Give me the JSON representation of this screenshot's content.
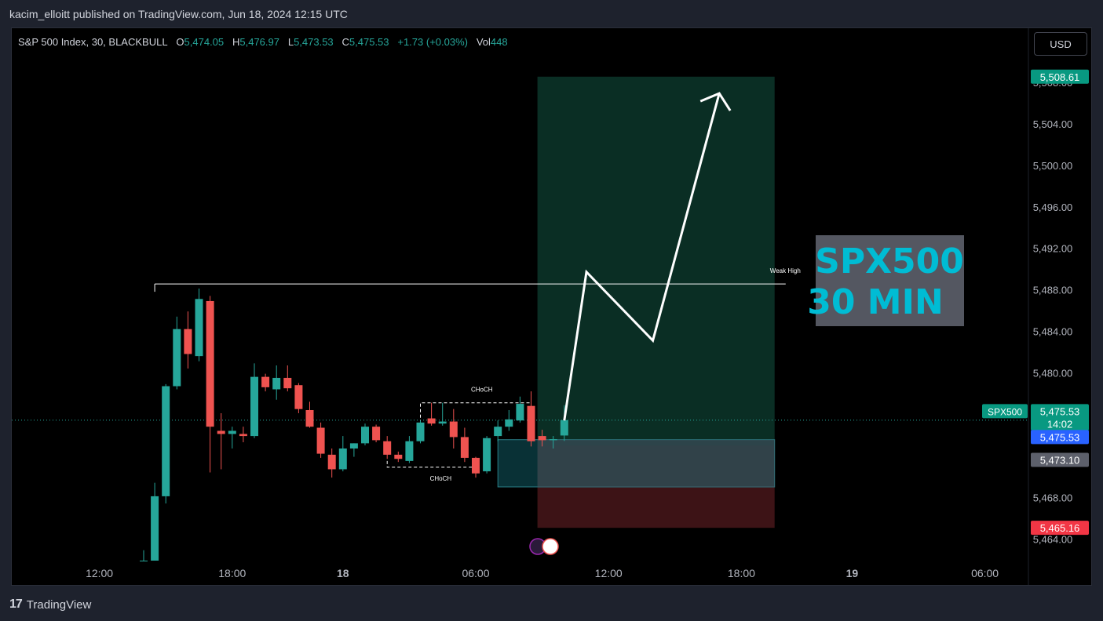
{
  "header": {
    "publisher": "kacim_elloitt published on TradingView.com, Jun 18, 2024 12:15 UTC"
  },
  "legend": {
    "symbol": "S&P 500 Index, 30, BLACKBULL",
    "o_label": "O",
    "o": "5,474.05",
    "h_label": "H",
    "h": "5,476.97",
    "l_label": "L",
    "l": "5,473.53",
    "c_label": "C",
    "c": "5,475.53",
    "change": "+1.73 (+0.03%)",
    "vol_label": "Vol",
    "vol": "448"
  },
  "currency_button": "USD",
  "footer": {
    "brand": "TradingView",
    "logo": "17"
  },
  "colors": {
    "up": "#26a69a",
    "down": "#ef5350",
    "target_zone": "#0a2e24",
    "stop_zone": "#3d1316",
    "box_zone": "#0a3a40",
    "label_cyan": "#00bcd4"
  },
  "chart_data": {
    "type": "candlestick",
    "y_range": [
      5462.0,
      5509.5
    ],
    "y_ticks": [
      "5,464.00",
      "5,468.00",
      "5,472.00",
      "5,476.00",
      "5,480.00",
      "5,484.00",
      "5,488.00",
      "5,492.00",
      "5,496.00",
      "5,500.00",
      "5,504.00",
      "5,508.00"
    ],
    "x_ticks": [
      {
        "bar": -4,
        "label": "12:00",
        "bold": false
      },
      {
        "bar": 8,
        "label": "18:00",
        "bold": false
      },
      {
        "bar": 18,
        "label": "18",
        "bold": true
      },
      {
        "bar": 30,
        "label": "06:00",
        "bold": false
      },
      {
        "bar": 42,
        "label": "12:00",
        "bold": false
      },
      {
        "bar": 54,
        "label": "18:00",
        "bold": false
      },
      {
        "bar": 64,
        "label": "19",
        "bold": true
      },
      {
        "bar": 76,
        "label": "06:00",
        "bold": false
      }
    ],
    "candles": [
      {
        "o": 5462.0,
        "h": 5463.0,
        "l": 5462.0,
        "c": 5462.0
      },
      {
        "o": 5462.0,
        "h": 5469.5,
        "l": 5462.0,
        "c": 5468.2
      },
      {
        "o": 5468.2,
        "h": 5479.0,
        "l": 5467.5,
        "c": 5478.8
      },
      {
        "o": 5478.8,
        "h": 5485.5,
        "l": 5478.5,
        "c": 5484.3
      },
      {
        "o": 5484.3,
        "h": 5486.0,
        "l": 5480.5,
        "c": 5481.9
      },
      {
        "o": 5481.7,
        "h": 5488.2,
        "l": 5481.2,
        "c": 5487.2
      },
      {
        "o": 5487.0,
        "h": 5487.5,
        "l": 5470.5,
        "c": 5474.9
      },
      {
        "o": 5474.5,
        "h": 5476.2,
        "l": 5470.8,
        "c": 5474.2
      },
      {
        "o": 5474.2,
        "h": 5474.9,
        "l": 5472.8,
        "c": 5474.5
      },
      {
        "o": 5474.2,
        "h": 5474.9,
        "l": 5473.4,
        "c": 5474.0
      },
      {
        "o": 5474.0,
        "h": 5481.0,
        "l": 5473.8,
        "c": 5479.7
      },
      {
        "o": 5479.7,
        "h": 5480.0,
        "l": 5478.3,
        "c": 5478.7
      },
      {
        "o": 5478.5,
        "h": 5480.8,
        "l": 5477.5,
        "c": 5479.6
      },
      {
        "o": 5479.6,
        "h": 5480.8,
        "l": 5478.3,
        "c": 5478.6
      },
      {
        "o": 5478.9,
        "h": 5479.1,
        "l": 5476.2,
        "c": 5476.6
      },
      {
        "o": 5476.5,
        "h": 5477.3,
        "l": 5474.8,
        "c": 5474.9
      },
      {
        "o": 5474.8,
        "h": 5475.3,
        "l": 5471.9,
        "c": 5472.3
      },
      {
        "o": 5472.2,
        "h": 5472.8,
        "l": 5470.0,
        "c": 5470.8
      },
      {
        "o": 5470.8,
        "h": 5474.0,
        "l": 5470.6,
        "c": 5472.8
      },
      {
        "o": 5472.8,
        "h": 5473.3,
        "l": 5472.0,
        "c": 5473.3
      },
      {
        "o": 5473.3,
        "h": 5475.2,
        "l": 5473.1,
        "c": 5474.9
      },
      {
        "o": 5474.9,
        "h": 5475.1,
        "l": 5473.4,
        "c": 5473.6
      },
      {
        "o": 5473.5,
        "h": 5474.0,
        "l": 5471.8,
        "c": 5472.2
      },
      {
        "o": 5472.2,
        "h": 5472.5,
        "l": 5471.5,
        "c": 5471.8
      },
      {
        "o": 5471.6,
        "h": 5474.0,
        "l": 5471.4,
        "c": 5473.5
      },
      {
        "o": 5473.5,
        "h": 5475.5,
        "l": 5473.3,
        "c": 5475.3
      },
      {
        "o": 5475.7,
        "h": 5477.2,
        "l": 5475.0,
        "c": 5475.2
      },
      {
        "o": 5475.2,
        "h": 5477.2,
        "l": 5475.0,
        "c": 5475.4
      },
      {
        "o": 5475.4,
        "h": 5476.6,
        "l": 5472.8,
        "c": 5473.9
      },
      {
        "o": 5473.9,
        "h": 5474.8,
        "l": 5471.5,
        "c": 5471.9
      },
      {
        "o": 5471.9,
        "h": 5472.0,
        "l": 5470.0,
        "c": 5470.4
      },
      {
        "o": 5470.6,
        "h": 5474.0,
        "l": 5470.4,
        "c": 5473.8
      },
      {
        "o": 5474.0,
        "h": 5475.5,
        "l": 5473.5,
        "c": 5474.9
      },
      {
        "o": 5474.9,
        "h": 5476.5,
        "l": 5474.5,
        "c": 5475.6
      },
      {
        "o": 5475.5,
        "h": 5477.8,
        "l": 5475.3,
        "c": 5477.1
      },
      {
        "o": 5476.9,
        "h": 5478.3,
        "l": 5473.0,
        "c": 5473.5
      },
      {
        "o": 5474.0,
        "h": 5474.6,
        "l": 5473.0,
        "c": 5473.6
      },
      {
        "o": 5473.6,
        "h": 5474.0,
        "l": 5472.8,
        "c": 5473.7
      },
      {
        "o": 5474.05,
        "h": 5476.97,
        "l": 5473.53,
        "c": 5475.53
      }
    ],
    "weak_high": {
      "price": 5488.65,
      "from_bar": 1,
      "to_bar": 58,
      "label": "Weak High"
    },
    "choch_upper": {
      "label": "CHoCH",
      "price": 5477.2,
      "from_bar": 25,
      "to_bar": 35
    },
    "choch_lower": {
      "label": "CHoCH",
      "price": 5471.0,
      "from_bar": 22,
      "to_bar": 30
    },
    "position": {
      "entry": 5473.1,
      "target": 5508.61,
      "stop": 5465.16,
      "from_bar": 36,
      "to_bar": 57
    },
    "demand_box": {
      "top": 5473.65,
      "bottom": 5469.1,
      "from_bar": 32,
      "to_bar": 57
    },
    "projection": [
      {
        "bar": 38,
        "price": 5475.5
      },
      {
        "bar": 40,
        "price": 5489.8
      },
      {
        "bar": 46,
        "price": 5483.2
      },
      {
        "bar": 52,
        "price": 5507.0
      }
    ],
    "current_price": 5475.53,
    "price_labels": [
      {
        "text": "5,508.61",
        "price": 5508.61,
        "bg": "#089981"
      },
      {
        "text": "5,475.53",
        "sub": "14:02",
        "price": 5476.4,
        "bg": "#089981"
      },
      {
        "text": "5,475.53",
        "price": 5473.9,
        "bg": "#2962ff"
      },
      {
        "text": "5,473.10",
        "price": 5471.7,
        "bg": "#5d606b"
      },
      {
        "text": "5,465.16",
        "price": 5465.16,
        "bg": "#f23645"
      }
    ],
    "symbol_tag": "SPX500",
    "annotation": {
      "line1": "SPX500",
      "line2": "30 MIN"
    }
  }
}
